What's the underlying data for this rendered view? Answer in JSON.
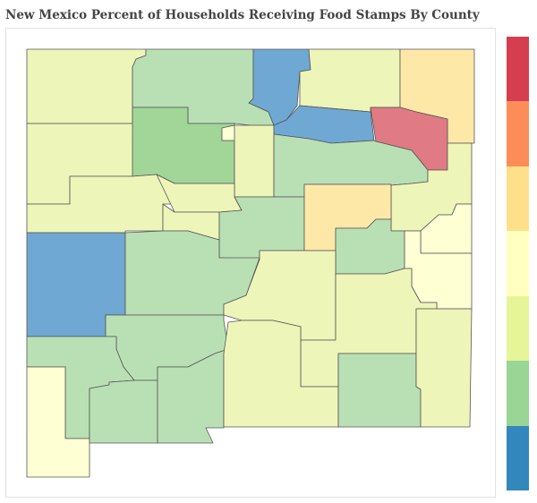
{
  "title": "New Mexico Percent of Households Receiving Food Stamps By County",
  "legend": {
    "colors": [
      "#d53e4f",
      "#fc8d59",
      "#fee08b",
      "#ffffbf",
      "#e6f598",
      "#99d594",
      "#3288bd"
    ]
  },
  "fill_colors": {
    "very_high": "#e07a84",
    "high": "#fee8a8",
    "above_mid": "#ffffd4",
    "mid": "#eef5b8",
    "low": "#b9e0b4",
    "lower": "#a1d698",
    "very_low": "#6fa8d3"
  },
  "border_color": "#555555"
}
